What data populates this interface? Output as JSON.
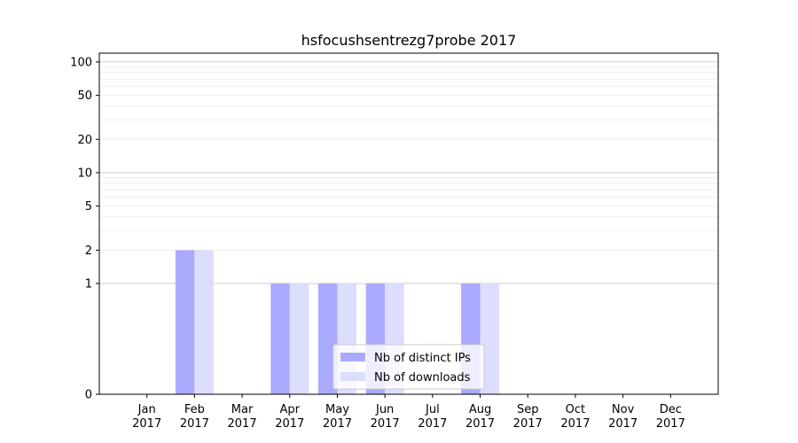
{
  "chart_data": {
    "type": "bar",
    "title": "hsfocushsentrezg7probe 2017",
    "xlabel": "",
    "ylabel": "",
    "yscale": "symlog",
    "ylim": [
      0,
      120
    ],
    "yticks": [
      0,
      1,
      2,
      5,
      10,
      20,
      50,
      100
    ],
    "grid": true,
    "legend_position": "lower-center",
    "categories": [
      [
        "Jan",
        "2017"
      ],
      [
        "Feb",
        "2017"
      ],
      [
        "Mar",
        "2017"
      ],
      [
        "Apr",
        "2017"
      ],
      [
        "May",
        "2017"
      ],
      [
        "Jun",
        "2017"
      ],
      [
        "Jul",
        "2017"
      ],
      [
        "Aug",
        "2017"
      ],
      [
        "Sep",
        "2017"
      ],
      [
        "Oct",
        "2017"
      ],
      [
        "Nov",
        "2017"
      ],
      [
        "Dec",
        "2017"
      ]
    ],
    "series": [
      {
        "name": "Nb of distinct IPs",
        "color": "#aaaaff",
        "values": [
          0,
          2,
          0,
          1,
          1,
          1,
          0,
          1,
          0,
          0,
          0,
          0
        ]
      },
      {
        "name": "Nb of downloads",
        "color": "#ddddff",
        "values": [
          0,
          2,
          0,
          1,
          1,
          1,
          0,
          1,
          0,
          0,
          0,
          0
        ]
      }
    ]
  }
}
